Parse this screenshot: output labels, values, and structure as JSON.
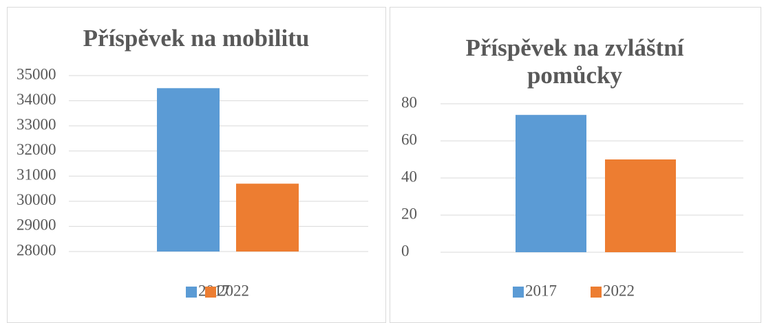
{
  "chart_data": [
    {
      "type": "bar",
      "title": "Příspěvek na mobilitu",
      "categories": [
        null
      ],
      "series": [
        {
          "name": "2017",
          "color": "#5b9bd5",
          "values": [
            34500
          ]
        },
        {
          "name": "2022",
          "color": "#ed7d31",
          "values": [
            30700
          ]
        }
      ],
      "ylim": [
        28000,
        35000
      ],
      "yticks": [
        28000,
        29000,
        30000,
        31000,
        32000,
        33000,
        34000,
        35000
      ],
      "grid": true,
      "legend": "bottom"
    },
    {
      "type": "bar",
      "title": "Příspěvek na zvláštní pomůcky",
      "categories": [
        null
      ],
      "series": [
        {
          "name": "2017",
          "color": "#5b9bd5",
          "values": [
            74
          ]
        },
        {
          "name": "2022",
          "color": "#ed7d31",
          "values": [
            50
          ]
        }
      ],
      "ylim": [
        0,
        80
      ],
      "yticks": [
        0,
        20,
        40,
        60,
        80
      ],
      "grid": true,
      "legend": "bottom"
    }
  ]
}
